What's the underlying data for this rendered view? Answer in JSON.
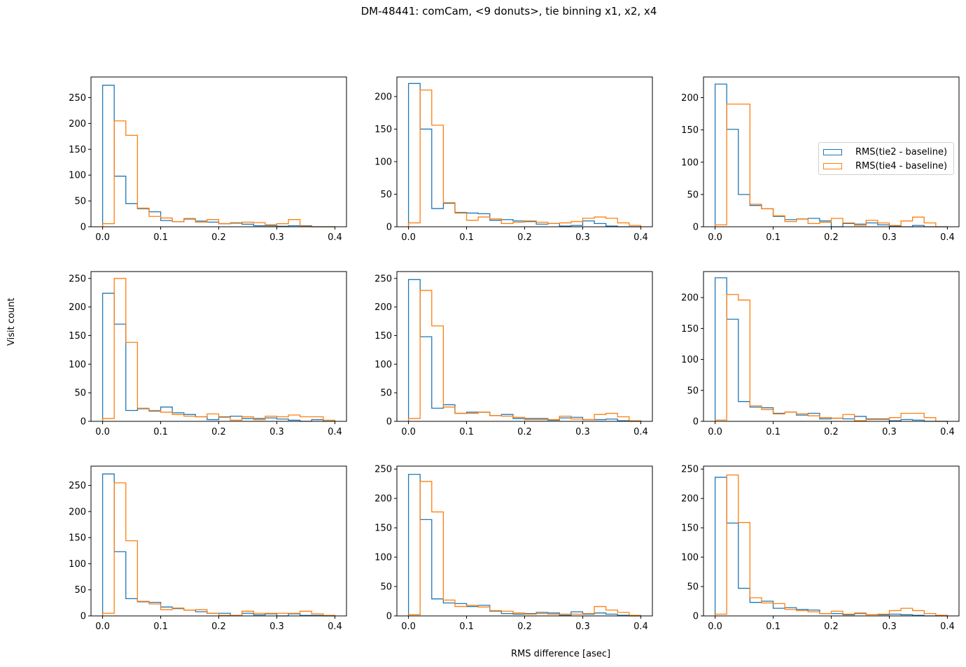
{
  "figure": {
    "suptitle": "DM-48441:  comCam,  <9 donuts>, tie binning x1, x2, x4",
    "xlabel": "RMS difference [asec]",
    "ylabel": "Visit count"
  },
  "legend": {
    "items": [
      {
        "label": "RMS(tie2 - baseline)",
        "color": "#1f77b4"
      },
      {
        "label": "RMS(tie4 - baseline)",
        "color": "#ff7f0e"
      }
    ]
  },
  "chart_data": {
    "type": "bar",
    "histtype": "step",
    "title": "DM-48441:  comCam,  <9 donuts>, tie binning x1, x2, x4",
    "xlabel": "RMS difference [asec]",
    "ylabel": "Visit count",
    "bin_edges": [
      0.0,
      0.02,
      0.04,
      0.06,
      0.08,
      0.1,
      0.12,
      0.14,
      0.16,
      0.18,
      0.2,
      0.22,
      0.24,
      0.26,
      0.28,
      0.3,
      0.32,
      0.34,
      0.36,
      0.38,
      0.4
    ],
    "xlim": [
      -0.02,
      0.42
    ],
    "xticks": [
      "0.0",
      "0.1",
      "0.2",
      "0.3",
      "0.4"
    ],
    "grid": false,
    "legend_position": "panel 3, center right",
    "panels": [
      {
        "ylim": [
          0,
          290
        ],
        "yticks": [
          0,
          50,
          100,
          150,
          200,
          250
        ],
        "series": [
          {
            "name": "RMS(tie2 - baseline)",
            "values": [
              274,
              98,
              45,
              35,
              29,
              12,
              10,
              15,
              11,
              9,
              6,
              7,
              5,
              2,
              2,
              1,
              2,
              2,
              0,
              0
            ]
          },
          {
            "name": "RMS(tie4 - baseline)",
            "values": [
              6,
              205,
              177,
              36,
              20,
              17,
              10,
              16,
              9,
              14,
              6,
              8,
              9,
              8,
              4,
              6,
              14,
              1,
              0,
              0
            ]
          }
        ]
      },
      {
        "ylim": [
          0,
          230
        ],
        "yticks": [
          0,
          50,
          100,
          150,
          200
        ],
        "series": [
          {
            "name": "RMS(tie2 - baseline)",
            "values": [
              220,
              150,
              28,
              36,
              22,
              21,
              20,
              10,
              11,
              9,
              8,
              4,
              5,
              1,
              2,
              9,
              5,
              1,
              0,
              0
            ]
          },
          {
            "name": "RMS(tie4 - baseline)",
            "values": [
              6,
              210,
              156,
              37,
              21,
              10,
              15,
              12,
              5,
              7,
              9,
              7,
              5,
              6,
              8,
              13,
              15,
              13,
              6,
              2
            ]
          }
        ]
      },
      {
        "ylim": [
          0,
          232
        ],
        "yticks": [
          0,
          50,
          100,
          150,
          200
        ],
        "series": [
          {
            "name": "RMS(tie2 - baseline)",
            "values": [
              221,
              151,
              50,
              33,
              28,
              16,
              11,
              12,
              13,
              9,
              0,
              5,
              4,
              6,
              3,
              1,
              0,
              2,
              0,
              0
            ]
          },
          {
            "name": "RMS(tie4 - baseline)",
            "values": [
              3,
              190,
              190,
              35,
              28,
              17,
              8,
              12,
              5,
              7,
              13,
              6,
              2,
              10,
              6,
              2,
              9,
              15,
              6,
              0
            ]
          }
        ]
      },
      {
        "ylim": [
          0,
          262
        ],
        "yticks": [
          0,
          50,
          100,
          150,
          200,
          250
        ],
        "series": [
          {
            "name": "RMS(tie2 - baseline)",
            "values": [
              224,
              170,
              19,
              22,
              18,
              25,
              15,
              12,
              8,
              3,
              8,
              9,
              5,
              5,
              6,
              4,
              2,
              0,
              3,
              0
            ]
          },
          {
            "name": "RMS(tie4 - baseline)",
            "values": [
              5,
              250,
              138,
              23,
              19,
              16,
              12,
              9,
              8,
              13,
              7,
              2,
              8,
              3,
              9,
              8,
              11,
              8,
              8,
              2
            ]
          }
        ]
      },
      {
        "ylim": [
          0,
          262
        ],
        "yticks": [
          0,
          50,
          100,
          150,
          200,
          250
        ],
        "series": [
          {
            "name": "RMS(tie2 - baseline)",
            "values": [
              248,
              148,
              23,
              29,
              14,
              16,
              16,
              10,
              12,
              5,
              5,
              5,
              2,
              6,
              7,
              3,
              3,
              4,
              1,
              0
            ]
          },
          {
            "name": "RMS(tie4 - baseline)",
            "values": [
              5,
              229,
              167,
              25,
              14,
              14,
              16,
              10,
              9,
              7,
              3,
              3,
              3,
              9,
              4,
              3,
              12,
              14,
              8,
              1
            ]
          }
        ]
      },
      {
        "ylim": [
          0,
          242
        ],
        "yticks": [
          0,
          50,
          100,
          150,
          200
        ],
        "series": [
          {
            "name": "RMS(tie2 - baseline)",
            "values": [
              232,
              165,
              32,
              23,
              22,
              13,
              15,
              10,
              13,
              4,
              5,
              4,
              8,
              4,
              4,
              1,
              3,
              2,
              0,
              0
            ]
          },
          {
            "name": "RMS(tie4 - baseline)",
            "values": [
              2,
              205,
              196,
              25,
              19,
              12,
              15,
              12,
              9,
              6,
              5,
              11,
              1,
              3,
              3,
              6,
              13,
              13,
              6,
              0
            ]
          }
        ]
      },
      {
        "ylim": [
          0,
          287
        ],
        "yticks": [
          0,
          50,
          100,
          150,
          200,
          250
        ],
        "series": [
          {
            "name": "RMS(tie2 - baseline)",
            "values": [
              272,
              123,
              33,
              27,
              26,
              17,
              14,
              11,
              8,
              5,
              5,
              1,
              5,
              2,
              4,
              0,
              4,
              1,
              1,
              0
            ]
          },
          {
            "name": "RMS(tie4 - baseline)",
            "values": [
              5,
              255,
              144,
              28,
              23,
              12,
              15,
              11,
              12,
              5,
              1,
              1,
              9,
              5,
              5,
              5,
              5,
              9,
              4,
              1
            ]
          }
        ]
      },
      {
        "ylim": [
          0,
          255
        ],
        "yticks": [
          0,
          50,
          100,
          150,
          200,
          250
        ],
        "series": [
          {
            "name": "RMS(tie2 - baseline)",
            "values": [
              241,
              164,
              29,
              22,
              21,
              16,
              18,
              8,
              4,
              3,
              4,
              6,
              5,
              1,
              7,
              3,
              5,
              3,
              1,
              0
            ]
          },
          {
            "name": "RMS(tie4 - baseline)",
            "values": [
              2,
              229,
              177,
              27,
              16,
              18,
              15,
              9,
              8,
              5,
              3,
              4,
              3,
              3,
              3,
              4,
              16,
              10,
              6,
              1
            ]
          }
        ]
      },
      {
        "ylim": [
          0,
          255
        ],
        "yticks": [
          0,
          50,
          100,
          150,
          200,
          250
        ],
        "series": [
          {
            "name": "RMS(tie2 - baseline)",
            "values": [
              236,
              158,
              47,
              23,
              25,
              13,
              14,
              11,
              10,
              4,
              4,
              2,
              4,
              2,
              2,
              3,
              2,
              1,
              0,
              0
            ]
          },
          {
            "name": "RMS(tie4 - baseline)",
            "values": [
              3,
              240,
              159,
              31,
              22,
              21,
              11,
              9,
              7,
              4,
              8,
              3,
              5,
              2,
              3,
              9,
              13,
              9,
              4,
              1
            ]
          }
        ]
      }
    ]
  }
}
